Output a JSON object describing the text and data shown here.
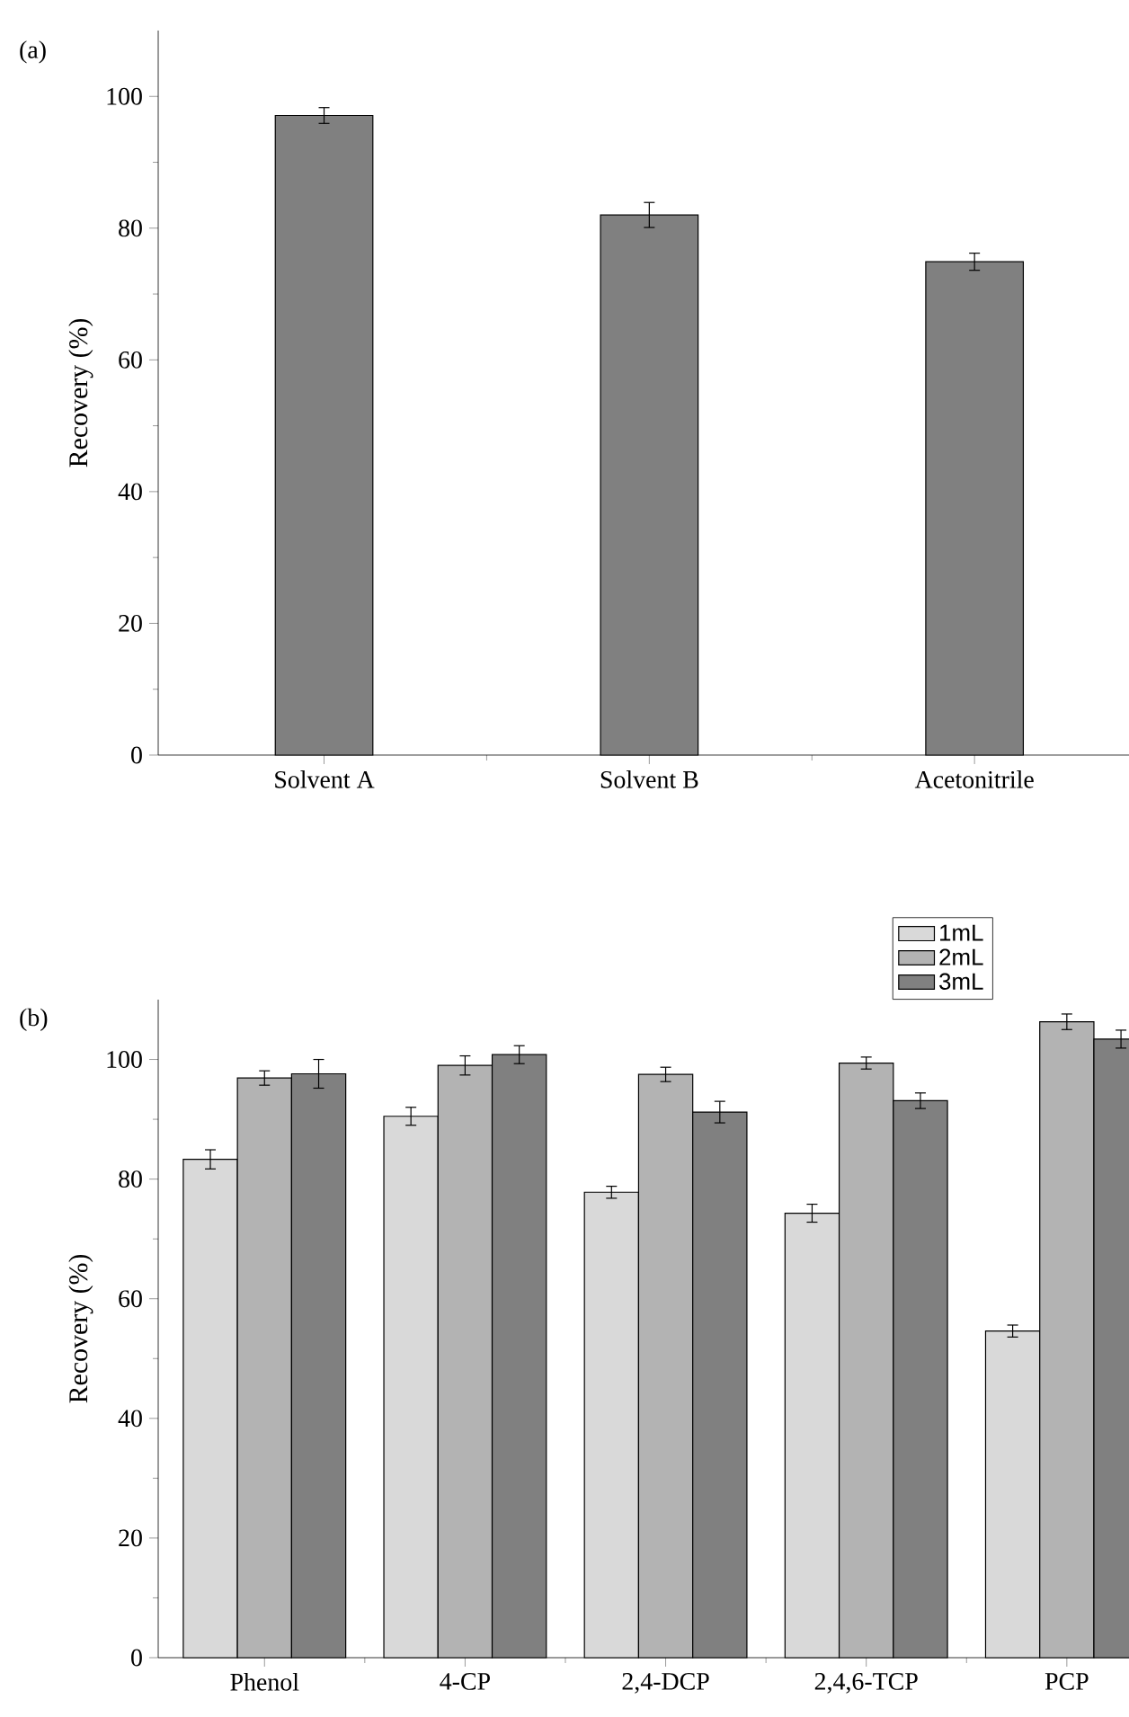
{
  "chart_data": [
    {
      "type": "bar",
      "title": "(a)",
      "ylabel": "Recovery (%)",
      "categories": [
        "Solvent A",
        "Solvent B",
        "Acetonitrile"
      ],
      "values": [
        97.1,
        82.0,
        74.9
      ],
      "errors": [
        1.2,
        1.9,
        1.3
      ],
      "color": "#808080",
      "ylim": [
        0,
        110
      ],
      "yticks": [
        0,
        20,
        40,
        60,
        80,
        100
      ]
    },
    {
      "type": "bar",
      "title": "(b)",
      "ylabel": "Recovery (%)",
      "categories": [
        "Phenol",
        "4-CP",
        "2,4-DCP",
        "2,4,6-TCP",
        "PCP"
      ],
      "series": [
        {
          "name": "1mL",
          "color": "#d9d9d9",
          "values": [
            83.3,
            90.5,
            77.8,
            74.3,
            54.6
          ],
          "errors": [
            1.6,
            1.5,
            1.0,
            1.5,
            1.0
          ]
        },
        {
          "name": "2mL",
          "color": "#b3b3b3",
          "values": [
            96.9,
            99.0,
            97.5,
            99.4,
            106.3
          ],
          "errors": [
            1.2,
            1.6,
            1.2,
            1.0,
            1.3
          ]
        },
        {
          "name": "3mL",
          "color": "#808080",
          "values": [
            97.6,
            100.8,
            91.2,
            93.1,
            103.4
          ],
          "errors": [
            2.4,
            1.5,
            1.8,
            1.3,
            1.5
          ]
        }
      ],
      "ylim": [
        0,
        110
      ],
      "yticks": [
        0,
        20,
        40,
        60,
        80,
        100
      ],
      "legend": "top right"
    }
  ]
}
